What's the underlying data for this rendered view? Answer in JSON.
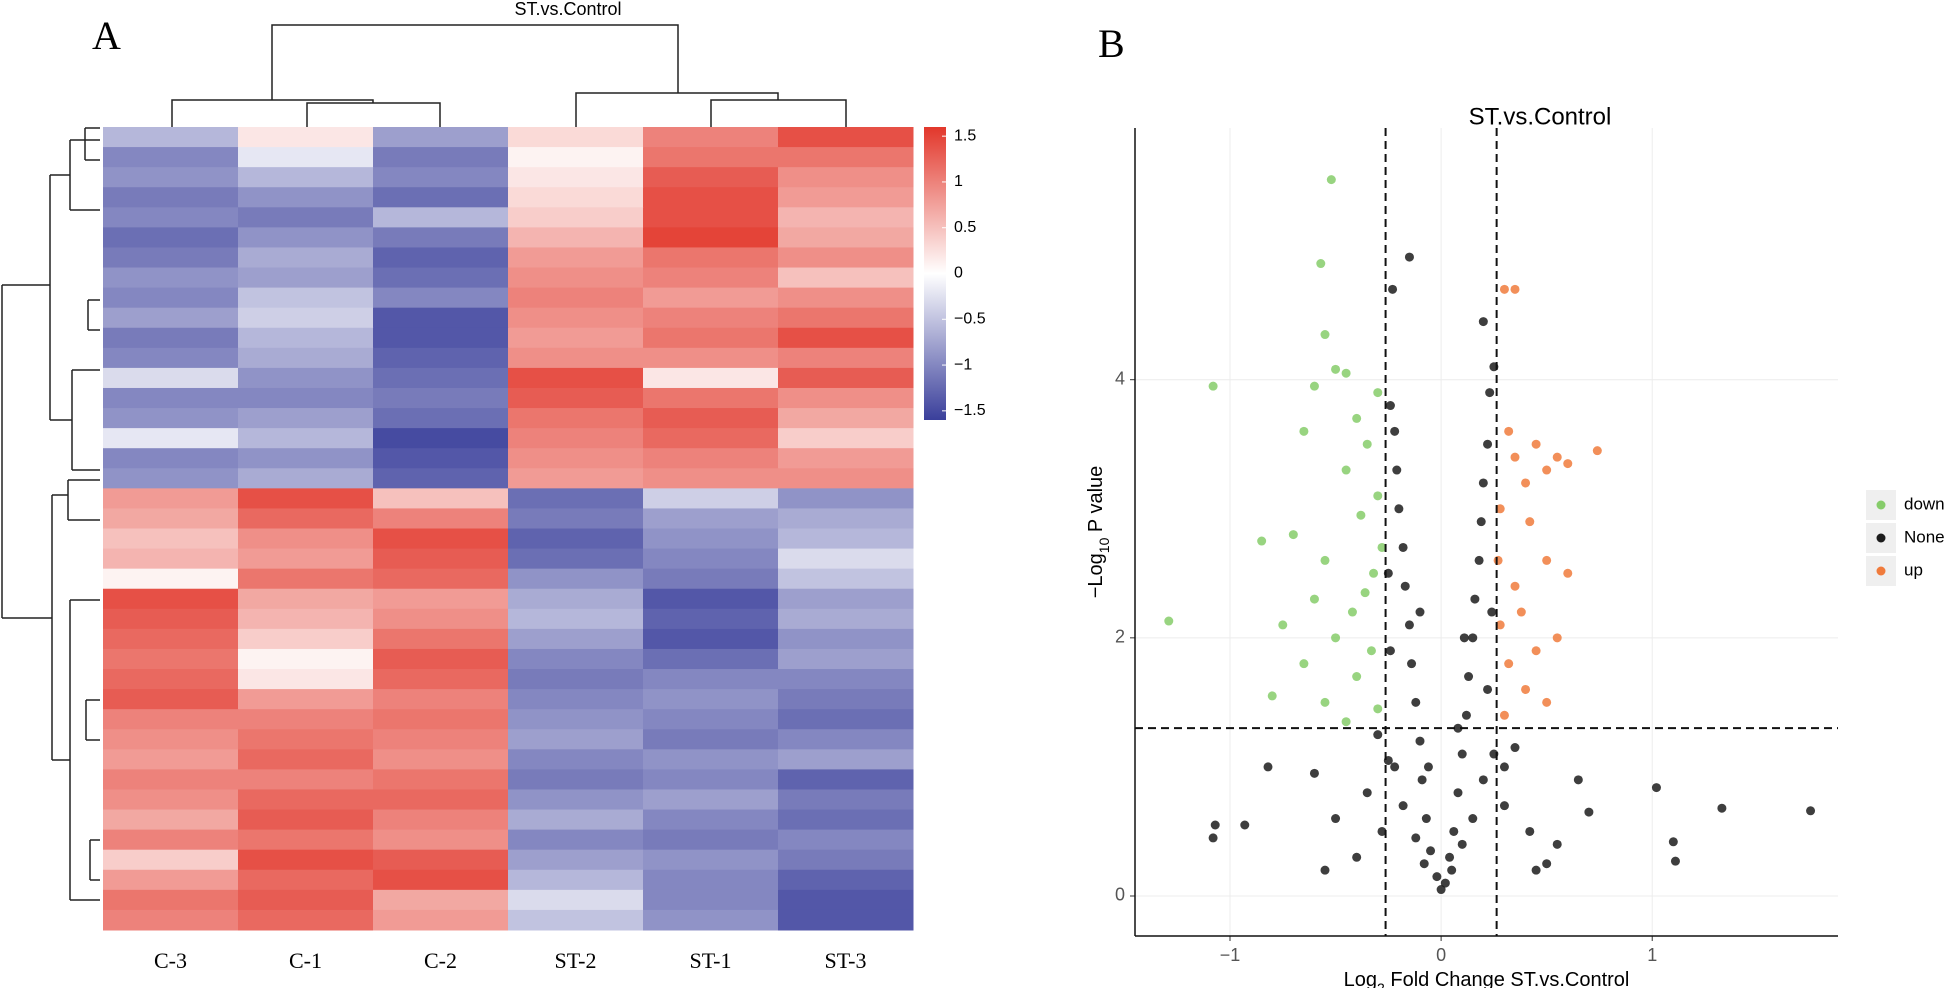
{
  "chart_data": [
    {
      "type": "heatmap",
      "panel": "A",
      "title": "ST.vs.Control",
      "columns": [
        "C-3",
        "C-1",
        "C-2",
        "ST-2",
        "ST-1",
        "ST-3"
      ],
      "colors": [
        "#3a3f9b",
        "#ffffff",
        "#e2372b"
      ],
      "clim": [
        -1.6,
        1.6
      ],
      "colorbar_ticks": [
        1.5,
        1,
        0.5,
        0,
        {
          "value": -0.5,
          "label": "−0.5"
        },
        {
          "value": -1,
          "label": "−1"
        },
        {
          "value": -1.5,
          "label": "−1.5"
        }
      ],
      "z": [
        [
          -0.6,
          0.2,
          -0.8,
          0.3,
          1.0,
          1.4
        ],
        [
          -1.0,
          -0.2,
          -1.1,
          0.1,
          1.1,
          1.1
        ],
        [
          -0.9,
          -0.6,
          -1.0,
          0.2,
          1.3,
          0.9
        ],
        [
          -1.1,
          -0.9,
          -1.2,
          0.3,
          1.4,
          0.8
        ],
        [
          -1.0,
          -1.1,
          -0.6,
          0.4,
          1.4,
          0.6
        ],
        [
          -1.2,
          -0.9,
          -1.1,
          0.6,
          1.5,
          0.7
        ],
        [
          -1.1,
          -0.7,
          -1.3,
          0.8,
          1.1,
          0.9
        ],
        [
          -0.9,
          -0.8,
          -1.2,
          0.9,
          1.0,
          0.5
        ],
        [
          -1.0,
          -0.5,
          -1.0,
          1.0,
          0.8,
          0.9
        ],
        [
          -0.8,
          -0.4,
          -1.4,
          0.9,
          1.0,
          1.1
        ],
        [
          -1.1,
          -0.6,
          -1.4,
          0.8,
          1.1,
          1.4
        ],
        [
          -1.0,
          -0.7,
          -1.3,
          0.9,
          0.9,
          1.0
        ],
        [
          -0.3,
          -0.9,
          -1.2,
          1.4,
          0.2,
          1.3
        ],
        [
          -1.0,
          -1.0,
          -1.1,
          1.3,
          1.1,
          0.9
        ],
        [
          -0.9,
          -0.8,
          -1.2,
          1.1,
          1.3,
          0.7
        ],
        [
          -0.2,
          -0.6,
          -1.5,
          1.0,
          1.2,
          0.4
        ],
        [
          -1.0,
          -0.9,
          -1.4,
          0.9,
          1.0,
          0.8
        ],
        [
          -0.9,
          -0.7,
          -1.3,
          0.8,
          0.9,
          0.9
        ],
        [
          0.8,
          1.4,
          0.5,
          -1.2,
          -0.4,
          -0.9
        ],
        [
          0.7,
          1.2,
          1.0,
          -1.1,
          -0.8,
          -0.7
        ],
        [
          0.5,
          0.9,
          1.4,
          -1.3,
          -0.9,
          -0.6
        ],
        [
          0.6,
          0.8,
          1.3,
          -1.2,
          -1.0,
          -0.3
        ],
        [
          0.1,
          1.1,
          1.2,
          -0.9,
          -1.1,
          -0.5
        ],
        [
          1.4,
          0.7,
          0.8,
          -0.7,
          -1.4,
          -0.8
        ],
        [
          1.3,
          0.6,
          0.9,
          -0.6,
          -1.3,
          -0.7
        ],
        [
          1.2,
          0.4,
          1.1,
          -0.8,
          -1.4,
          -0.9
        ],
        [
          1.1,
          0.1,
          1.3,
          -1.0,
          -1.2,
          -0.8
        ],
        [
          1.2,
          0.2,
          1.2,
          -1.1,
          -1.0,
          -1.0
        ],
        [
          1.3,
          0.8,
          1.0,
          -1.0,
          -0.9,
          -1.1
        ],
        [
          1.0,
          1.0,
          1.1,
          -0.9,
          -1.0,
          -1.2
        ],
        [
          0.9,
          1.1,
          1.0,
          -0.8,
          -1.1,
          -1.0
        ],
        [
          0.8,
          1.2,
          0.9,
          -1.0,
          -0.9,
          -0.8
        ],
        [
          1.0,
          1.0,
          1.1,
          -1.1,
          -1.0,
          -1.3
        ],
        [
          0.9,
          1.2,
          1.2,
          -0.9,
          -0.8,
          -1.1
        ],
        [
          0.7,
          1.3,
          1.0,
          -0.7,
          -1.0,
          -1.2
        ],
        [
          1.0,
          1.1,
          0.9,
          -1.0,
          -1.1,
          -1.0
        ],
        [
          0.4,
          1.4,
          1.3,
          -0.8,
          -0.9,
          -1.1
        ],
        [
          0.8,
          1.2,
          1.4,
          -0.6,
          -1.0,
          -1.3
        ],
        [
          1.1,
          1.3,
          0.7,
          -0.3,
          -1.0,
          -1.4
        ],
        [
          1.0,
          1.2,
          0.8,
          -0.5,
          -0.9,
          -1.4
        ]
      ]
    },
    {
      "type": "scatter",
      "panel": "B",
      "title": "ST.vs.Control",
      "xlabel_parts": [
        "Log",
        "2",
        " Fold Change ST.vs.Control"
      ],
      "ylabel_parts": [
        "−Log",
        "10",
        " P value"
      ],
      "xlim": [
        -1.45,
        1.88
      ],
      "ylim": [
        -0.31,
        5.95
      ],
      "xticks": [
        {
          "value": -1,
          "label": "−1"
        },
        0,
        1
      ],
      "yticks": [
        0,
        2,
        4
      ],
      "grid": true,
      "legend": "right",
      "vlines": [
        -0.263,
        0.263
      ],
      "hline": 1.301,
      "series": [
        {
          "name": "down",
          "color": "#86cc6a",
          "x": [
            -0.52,
            -0.57,
            -0.55,
            -0.5,
            -0.45,
            -0.6,
            -0.3,
            -0.4,
            -0.35,
            -0.65,
            -0.45,
            -0.3,
            -0.38,
            -0.7,
            -0.85,
            -0.55,
            -0.32,
            -0.6,
            -0.42,
            -0.75,
            -1.29,
            -0.5,
            -0.33,
            -0.65,
            -0.4,
            -0.8,
            -0.55,
            -0.3,
            -0.45,
            -1.08,
            -0.28,
            -0.36
          ],
          "y": [
            5.55,
            4.9,
            4.35,
            4.08,
            4.05,
            3.95,
            3.9,
            3.7,
            3.5,
            3.6,
            3.3,
            3.1,
            2.95,
            2.8,
            2.75,
            2.6,
            2.5,
            2.3,
            2.2,
            2.1,
            2.13,
            2.0,
            1.9,
            1.8,
            1.7,
            1.55,
            1.5,
            1.45,
            1.35,
            3.95,
            2.7,
            2.35
          ]
        },
        {
          "name": "None",
          "color": "#1c1c1c",
          "x": [
            0,
            0.02,
            -0.02,
            0.04,
            -0.05,
            0.06,
            -0.07,
            0.08,
            -0.09,
            0.1,
            -0.1,
            0.12,
            -0.12,
            0.13,
            -0.14,
            0.15,
            -0.15,
            0.16,
            -0.17,
            0.18,
            -0.18,
            0.19,
            -0.2,
            0.2,
            -0.21,
            0.22,
            -0.22,
            0.23,
            -0.24,
            0.25,
            -0.15,
            0.2,
            -0.23,
            0.1,
            -0.12,
            0.15,
            -0.18,
            0.2,
            -0.22,
            0.25,
            -0.25,
            0.05,
            -0.08,
            0.22,
            -0.24,
            0.24,
            -0.25,
            0.08,
            -0.06,
            0.11,
            -0.1,
            0.3,
            -0.35,
            0.42,
            -0.5,
            0.55,
            -0.6,
            0.65,
            0.7,
            -0.82,
            -1.07,
            -1.08,
            -0.93,
            1.02,
            1.1,
            1.11,
            1.33,
            1.75,
            0.5,
            -0.4,
            0.35,
            -0.3,
            0.45,
            -0.55,
            0.3,
            -0.28
          ],
          "y": [
            0.05,
            0.1,
            0.15,
            0.3,
            0.35,
            0.5,
            0.6,
            0.8,
            0.9,
            1.1,
            1.2,
            1.4,
            1.5,
            1.7,
            1.8,
            2.0,
            2.1,
            2.3,
            2.4,
            2.6,
            2.7,
            2.9,
            3.0,
            3.2,
            3.3,
            3.5,
            3.6,
            3.9,
            3.8,
            4.1,
            4.95,
            4.45,
            4.7,
            0.4,
            0.45,
            0.6,
            0.7,
            0.9,
            1.0,
            1.1,
            1.05,
            0.2,
            0.25,
            1.6,
            1.9,
            2.2,
            2.5,
            1.3,
            1.0,
            2.0,
            2.2,
            0.7,
            0.8,
            0.5,
            0.6,
            0.4,
            0.95,
            0.9,
            0.65,
            1.0,
            0.55,
            0.45,
            0.55,
            0.84,
            0.42,
            0.27,
            0.68,
            0.66,
            0.25,
            0.3,
            1.15,
            1.25,
            0.2,
            0.2,
            1.0,
            0.5
          ]
        },
        {
          "name": "up",
          "color": "#f07b3c",
          "x": [
            0.3,
            0.35,
            0.32,
            0.45,
            0.55,
            0.74,
            0.5,
            0.4,
            0.28,
            0.42,
            0.6,
            0.5,
            0.35,
            0.38,
            0.55,
            0.28,
            0.45,
            0.32,
            0.4,
            0.3,
            0.5,
            0.35,
            0.6,
            0.27
          ],
          "y": [
            4.7,
            4.7,
            3.6,
            3.5,
            3.4,
            3.45,
            3.3,
            3.2,
            3.0,
            2.9,
            2.5,
            2.6,
            2.4,
            2.2,
            2.0,
            2.1,
            1.9,
            1.8,
            1.6,
            1.4,
            1.5,
            3.4,
            3.35,
            2.6
          ]
        }
      ]
    }
  ]
}
